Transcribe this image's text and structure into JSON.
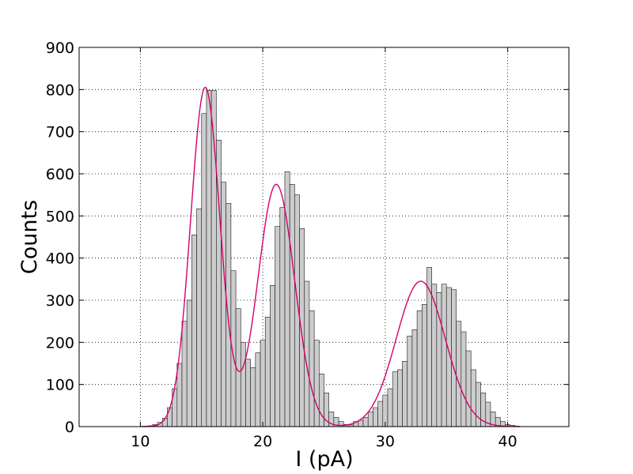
{
  "chart_data": {
    "type": "bar",
    "title": "",
    "xlabel": "I (pA)",
    "ylabel": "Counts",
    "xlim": [
      5,
      45
    ],
    "ylim": [
      0,
      900
    ],
    "xticks": [
      10,
      20,
      30,
      40
    ],
    "yticks": [
      0,
      100,
      200,
      300,
      400,
      500,
      600,
      700,
      800,
      900
    ],
    "grid": true,
    "bin_width": 0.4,
    "bar_color": "#cccccc",
    "fit_color": "#d4006c",
    "bins": [
      [
        10.2,
        1
      ],
      [
        10.6,
        2
      ],
      [
        11.0,
        5
      ],
      [
        11.4,
        10
      ],
      [
        11.8,
        20
      ],
      [
        12.2,
        45
      ],
      [
        12.6,
        90
      ],
      [
        13.0,
        150
      ],
      [
        13.4,
        250
      ],
      [
        13.8,
        300
      ],
      [
        14.2,
        455
      ],
      [
        14.6,
        517
      ],
      [
        15.0,
        743
      ],
      [
        15.4,
        798
      ],
      [
        15.8,
        798
      ],
      [
        16.2,
        680
      ],
      [
        16.6,
        580
      ],
      [
        17.0,
        530
      ],
      [
        17.4,
        370
      ],
      [
        17.8,
        280
      ],
      [
        18.2,
        200
      ],
      [
        18.6,
        160
      ],
      [
        19.0,
        140
      ],
      [
        19.4,
        175
      ],
      [
        19.8,
        205
      ],
      [
        20.2,
        260
      ],
      [
        20.6,
        335
      ],
      [
        21.0,
        475
      ],
      [
        21.4,
        520
      ],
      [
        21.8,
        605
      ],
      [
        22.2,
        575
      ],
      [
        22.6,
        550
      ],
      [
        23.0,
        470
      ],
      [
        23.4,
        345
      ],
      [
        23.8,
        275
      ],
      [
        24.2,
        205
      ],
      [
        24.6,
        125
      ],
      [
        25.0,
        80
      ],
      [
        25.4,
        35
      ],
      [
        25.8,
        22
      ],
      [
        26.2,
        12
      ],
      [
        26.6,
        5
      ],
      [
        27.0,
        4
      ],
      [
        27.4,
        12
      ],
      [
        27.8,
        15
      ],
      [
        28.2,
        22
      ],
      [
        28.6,
        35
      ],
      [
        29.0,
        45
      ],
      [
        29.4,
        60
      ],
      [
        29.8,
        75
      ],
      [
        30.2,
        90
      ],
      [
        30.6,
        130
      ],
      [
        31.0,
        135
      ],
      [
        31.4,
        155
      ],
      [
        31.8,
        215
      ],
      [
        32.2,
        230
      ],
      [
        32.6,
        275
      ],
      [
        33.0,
        290
      ],
      [
        33.4,
        378
      ],
      [
        33.8,
        338
      ],
      [
        34.2,
        318
      ],
      [
        34.6,
        338
      ],
      [
        35.0,
        330
      ],
      [
        35.4,
        325
      ],
      [
        35.8,
        250
      ],
      [
        36.2,
        225
      ],
      [
        36.6,
        180
      ],
      [
        37.0,
        135
      ],
      [
        37.4,
        105
      ],
      [
        37.8,
        80
      ],
      [
        38.2,
        58
      ],
      [
        38.6,
        35
      ],
      [
        39.0,
        22
      ],
      [
        39.4,
        12
      ],
      [
        39.8,
        5
      ],
      [
        40.2,
        3
      ],
      [
        40.6,
        1
      ]
    ],
    "fit_components": [
      {
        "amplitude": 805,
        "mean": 15.3,
        "sigma": 1.2
      },
      {
        "amplitude": 575,
        "mean": 21.1,
        "sigma": 1.5
      },
      {
        "amplitude": 345,
        "mean": 32.9,
        "sigma": 2.0
      }
    ]
  }
}
